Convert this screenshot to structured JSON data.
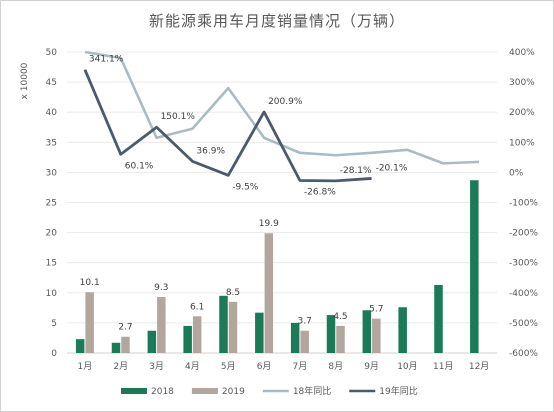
{
  "chart_data": {
    "type": "bar",
    "title": "新能源乘用车月度销量情况（万辆）",
    "ylabel": "x 10000",
    "categories": [
      "1月",
      "2月",
      "3月",
      "4月",
      "5月",
      "6月",
      "7月",
      "8月",
      "9月",
      "10月",
      "11月",
      "12月"
    ],
    "ylim": [
      0,
      50
    ],
    "yticks": [
      0,
      5,
      10,
      15,
      20,
      25,
      30,
      35,
      40,
      45,
      50
    ],
    "y2lim": [
      -600,
      400
    ],
    "y2ticks": [
      -600,
      -500,
      -400,
      -300,
      -200,
      -100,
      0,
      100,
      200,
      300,
      400
    ],
    "y2tick_labels": [
      "-600%",
      "-500%",
      "-400%",
      "-300%",
      "-200%",
      "-100%",
      "0%",
      "100%",
      "200%",
      "300%",
      "400%"
    ],
    "grid": true,
    "legend_position": "bottom",
    "series": [
      {
        "name": "2018",
        "kind": "bar",
        "axis": "left",
        "color": "#1b7a57",
        "values": [
          2.3,
          1.7,
          3.7,
          4.5,
          9.5,
          6.7,
          5.0,
          6.3,
          7.1,
          7.6,
          11.3,
          28.7
        ]
      },
      {
        "name": "2019",
        "kind": "bar",
        "axis": "left",
        "color": "#b3a69f",
        "values": [
          10.1,
          2.7,
          9.3,
          6.1,
          8.5,
          19.9,
          3.7,
          4.5,
          5.7,
          null,
          null,
          null
        ],
        "data_labels": [
          "10.1",
          "2.7",
          "9.3",
          "6.1",
          "8.5",
          "19.9",
          "3.7",
          "4.5",
          "5.7",
          "",
          "",
          ""
        ]
      },
      {
        "name": "18年同比",
        "kind": "line",
        "axis": "right",
        "color": "#a9bcc4",
        "values": [
          400,
          380,
          115,
          145,
          280,
          115,
          65,
          57,
          65,
          75,
          30,
          35
        ]
      },
      {
        "name": "19年同比",
        "kind": "line",
        "axis": "right",
        "color": "#4b5a6d",
        "values": [
          341.1,
          60.1,
          150.1,
          36.9,
          -9.5,
          200.9,
          -26.8,
          -28.1,
          -20.1,
          null,
          null,
          null
        ],
        "data_labels": [
          "341.1%",
          "60.1%",
          "150.1%",
          "36.9%",
          "-9.5%",
          "200.9%",
          "-26.8%",
          "-28.1%",
          "-20.1%",
          "",
          "",
          ""
        ]
      }
    ]
  }
}
